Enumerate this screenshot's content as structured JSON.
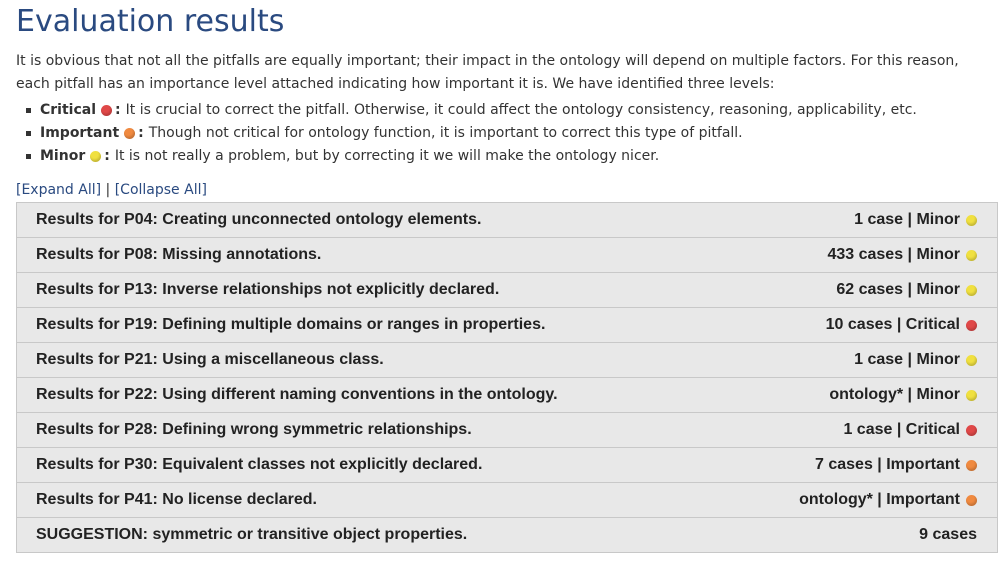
{
  "page_title": "Evaluation results",
  "intro": "It is obvious that not all the pitfalls are equally important; their impact in the ontology will depend on multiple factors. For this reason, each pitfall has an importance level attached indicating how important it is. We have identified three levels:",
  "levels": [
    {
      "name": "Critical",
      "colon": ":",
      "desc": "It is crucial to correct the pitfall. Otherwise, it could affect the ontology consistency, reasoning, applicability, etc.",
      "color": "#e04848"
    },
    {
      "name": "Important",
      "colon": ":",
      "desc": "Though not critical for ontology function, it is important to correct this type of pitfall.",
      "color": "#f08a40"
    },
    {
      "name": "Minor",
      "colon": ":",
      "desc": "It is not really a problem, but by correcting it we will make the ontology nicer.",
      "color": "#f0e040"
    }
  ],
  "controls": {
    "expand_all": "[Expand All]",
    "separator": "|",
    "collapse_all": "[Collapse All]"
  },
  "results": [
    {
      "title": "Results for P04: Creating unconnected ontology elements.",
      "summary": "1 case | Minor",
      "color": "#f0e040"
    },
    {
      "title": "Results for P08: Missing annotations.",
      "summary": "433 cases | Minor",
      "color": "#f0e040"
    },
    {
      "title": "Results for P13: Inverse relationships not explicitly declared.",
      "summary": "62 cases | Minor",
      "color": "#f0e040"
    },
    {
      "title": "Results for P19: Defining multiple domains or ranges in properties.",
      "summary": "10 cases | Critical",
      "color": "#e04848"
    },
    {
      "title": "Results for P21: Using a miscellaneous class.",
      "summary": "1 case | Minor",
      "color": "#f0e040"
    },
    {
      "title": "Results for P22: Using different naming conventions in the ontology.",
      "summary": "ontology* | Minor",
      "color": "#f0e040"
    },
    {
      "title": "Results for P28: Defining wrong symmetric relationships.",
      "summary": "1 case | Critical",
      "color": "#e04848"
    },
    {
      "title": "Results for P30: Equivalent classes not explicitly declared.",
      "summary": "7 cases | Important",
      "color": "#f08a40"
    },
    {
      "title": "Results for P41: No license declared.",
      "summary": "ontology* | Important",
      "color": "#f08a40"
    },
    {
      "title": "SUGGESTION: symmetric or transitive object properties.",
      "summary": "9 cases",
      "color": ""
    }
  ]
}
